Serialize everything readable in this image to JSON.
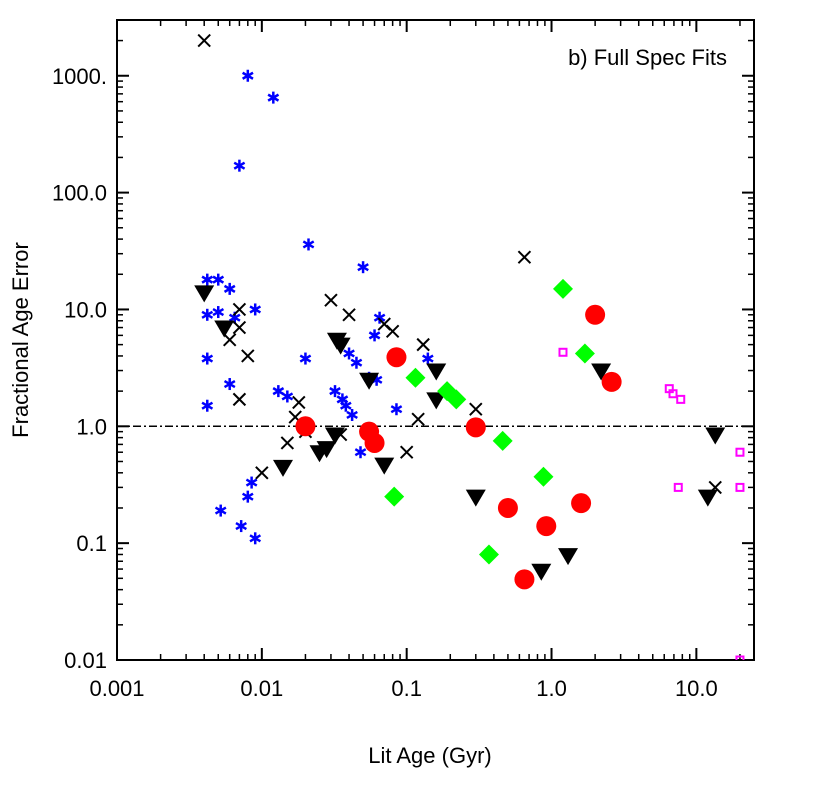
{
  "chart_data": {
    "type": "scatter",
    "title": "b) Full Spec Fits",
    "xlabel": "Lit Age (Gyr)",
    "ylabel": "Fractional Age Error",
    "xscale": "log",
    "yscale": "log",
    "xlim": [
      0.001,
      25
    ],
    "ylim": [
      0.01,
      3000
    ],
    "x_ticks": [
      {
        "value": 0.001,
        "label": "0.001"
      },
      {
        "value": 0.01,
        "label": "0.01"
      },
      {
        "value": 0.1,
        "label": "0.1"
      },
      {
        "value": 1,
        "label": "1.0"
      },
      {
        "value": 10,
        "label": "10.0"
      }
    ],
    "y_ticks": [
      {
        "value": 0.01,
        "label": "0.01"
      },
      {
        "value": 0.1,
        "label": "0.1"
      },
      {
        "value": 1,
        "label": "1.0"
      },
      {
        "value": 10,
        "label": "10.0"
      },
      {
        "value": 100,
        "label": "100.0"
      },
      {
        "value": 1000,
        "label": "1000."
      }
    ],
    "reference_line": {
      "y": 1.0,
      "style": "dash-dot"
    },
    "series": [
      {
        "name": "blue asterisks",
        "marker": "asterisk",
        "color": "#0000ff",
        "points": [
          [
            0.0042,
            18
          ],
          [
            0.005,
            18
          ],
          [
            0.0042,
            9
          ],
          [
            0.005,
            9.5
          ],
          [
            0.0042,
            3.8
          ],
          [
            0.0042,
            1.5
          ],
          [
            0.0052,
            0.19
          ],
          [
            0.006,
            15
          ],
          [
            0.0065,
            8.5
          ],
          [
            0.006,
            2.3
          ],
          [
            0.007,
            170
          ],
          [
            0.0072,
            0.14
          ],
          [
            0.008,
            1000
          ],
          [
            0.008,
            0.25
          ],
          [
            0.0085,
            0.33
          ],
          [
            0.009,
            10
          ],
          [
            0.009,
            0.11
          ],
          [
            0.012,
            650
          ],
          [
            0.013,
            2.0
          ],
          [
            0.015,
            1.8
          ],
          [
            0.02,
            3.8
          ],
          [
            0.021,
            36
          ],
          [
            0.032,
            2.0
          ],
          [
            0.036,
            1.7
          ],
          [
            0.038,
            1.5
          ],
          [
            0.04,
            4.2
          ],
          [
            0.042,
            1.25
          ],
          [
            0.045,
            3.5
          ],
          [
            0.05,
            23
          ],
          [
            0.048,
            0.6
          ],
          [
            0.055,
            2.6
          ],
          [
            0.06,
            6.0
          ],
          [
            0.065,
            8.5
          ],
          [
            0.062,
            2.5
          ],
          [
            0.085,
            1.4
          ],
          [
            0.14,
            3.8
          ]
        ]
      },
      {
        "name": "black crosses",
        "marker": "cross",
        "color": "#000000",
        "points": [
          [
            0.004,
            2000
          ],
          [
            0.006,
            5.5
          ],
          [
            0.007,
            7
          ],
          [
            0.007,
            10
          ],
          [
            0.007,
            1.7
          ],
          [
            0.008,
            4
          ],
          [
            0.01,
            0.4
          ],
          [
            0.015,
            0.72
          ],
          [
            0.017,
            1.2
          ],
          [
            0.018,
            1.6
          ],
          [
            0.02,
            0.9
          ],
          [
            0.03,
            12
          ],
          [
            0.035,
            0.85
          ],
          [
            0.04,
            9
          ],
          [
            0.07,
            7.5
          ],
          [
            0.08,
            6.5
          ],
          [
            0.1,
            0.6
          ],
          [
            0.12,
            1.15
          ],
          [
            0.13,
            5.0
          ],
          [
            0.3,
            1.4
          ],
          [
            0.65,
            28
          ],
          [
            13.5,
            0.3
          ]
        ]
      },
      {
        "name": "black triangles",
        "marker": "triangle-down",
        "color": "#000000",
        "points": [
          [
            0.004,
            14
          ],
          [
            0.0055,
            7
          ],
          [
            0.014,
            0.45
          ],
          [
            0.025,
            0.6
          ],
          [
            0.028,
            0.65
          ],
          [
            0.032,
            0.85
          ],
          [
            0.033,
            5.5
          ],
          [
            0.035,
            5.0
          ],
          [
            0.055,
            2.5
          ],
          [
            0.07,
            0.47
          ],
          [
            0.16,
            3.0
          ],
          [
            0.16,
            1.7
          ],
          [
            0.3,
            0.25
          ],
          [
            0.85,
            0.058
          ],
          [
            1.3,
            0.079
          ],
          [
            2.2,
            3.0
          ],
          [
            12.0,
            0.25
          ],
          [
            13.5,
            0.85
          ]
        ]
      },
      {
        "name": "red circles",
        "marker": "circle",
        "color": "#ff0000",
        "points": [
          [
            0.02,
            1.0
          ],
          [
            0.055,
            0.9
          ],
          [
            0.06,
            0.72
          ],
          [
            0.085,
            3.9
          ],
          [
            0.3,
            0.98
          ],
          [
            0.5,
            0.2
          ],
          [
            0.65,
            0.049
          ],
          [
            0.92,
            0.14
          ],
          [
            1.6,
            0.22
          ],
          [
            2.0,
            9.0
          ],
          [
            2.6,
            2.4
          ]
        ]
      },
      {
        "name": "green diamonds",
        "marker": "diamond",
        "color": "#00ff00",
        "points": [
          [
            0.082,
            0.25
          ],
          [
            0.115,
            2.6
          ],
          [
            0.19,
            2.0
          ],
          [
            0.22,
            1.7
          ],
          [
            0.37,
            0.08
          ],
          [
            0.46,
            0.75
          ],
          [
            0.88,
            0.37
          ],
          [
            1.2,
            15
          ],
          [
            1.7,
            4.2
          ]
        ]
      },
      {
        "name": "magenta squares",
        "marker": "square",
        "color": "#ff00ff",
        "points": [
          [
            1.2,
            4.3
          ],
          [
            6.5,
            2.1
          ],
          [
            6.9,
            1.9
          ],
          [
            7.8,
            1.7
          ],
          [
            7.5,
            0.3
          ],
          [
            20.0,
            0.6
          ],
          [
            20.0,
            0.3
          ],
          [
            20.0,
            0.01
          ]
        ]
      }
    ]
  }
}
